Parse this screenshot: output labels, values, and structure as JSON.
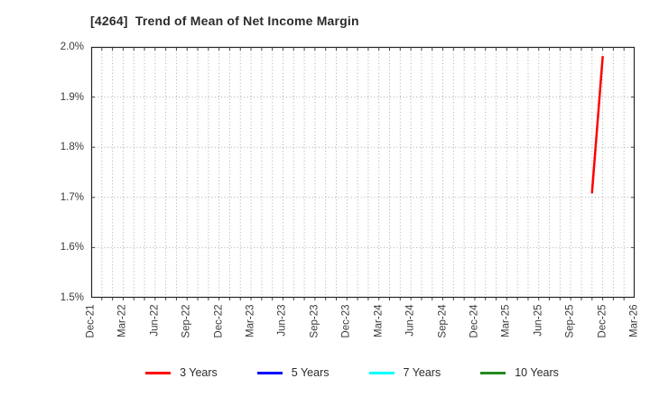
{
  "title": "[4264]  Trend of Mean of Net Income Margin",
  "chart_data": {
    "type": "line",
    "title": "[4264]  Trend of Mean of Net Income Margin",
    "x_axis": {
      "start": "Dec-21",
      "end": "Mar-26",
      "months_total": 51,
      "tick_labels": [
        "Dec-21",
        "Mar-22",
        "Jun-22",
        "Sep-22",
        "Dec-22",
        "Mar-23",
        "Jun-23",
        "Sep-23",
        "Dec-23",
        "Mar-24",
        "Jun-24",
        "Sep-24",
        "Dec-24",
        "Mar-25",
        "Jun-25",
        "Sep-25",
        "Dec-25",
        "Mar-26"
      ],
      "tick_spacing_months": 3,
      "gridline_every_months": 1
    },
    "y_axis": {
      "unit": "%",
      "ylim": [
        1.5,
        2.0
      ],
      "ticks": [
        {
          "label": "2.0%",
          "value": 2.0
        },
        {
          "label": "1.9%",
          "value": 1.9
        },
        {
          "label": "1.8%",
          "value": 1.8
        },
        {
          "label": "1.7%",
          "value": 1.7
        },
        {
          "label": "1.6%",
          "value": 1.6
        },
        {
          "label": "1.5%",
          "value": 1.5
        }
      ]
    },
    "grid": {
      "style": "dotted",
      "color": "#aaaaaa",
      "on": true
    },
    "legend_position": "bottom-center",
    "series": [
      {
        "name": "3 Years",
        "color": "#ff0000",
        "points": [
          {
            "month": "Nov-25",
            "value": 1.71
          },
          {
            "month": "Dec-25",
            "value": 1.98
          }
        ]
      },
      {
        "name": "5 Years",
        "color": "#0000ff",
        "points": []
      },
      {
        "name": "7 Years",
        "color": "#00ffff",
        "points": []
      },
      {
        "name": "10 Years",
        "color": "#228b22",
        "points": []
      }
    ],
    "frame_color": "#262626"
  }
}
